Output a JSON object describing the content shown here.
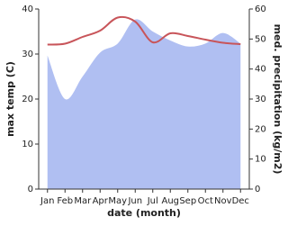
{
  "chart_data": {
    "type": "line-area",
    "x_label": "date (month)",
    "y_label": "max temp (C)",
    "y2_label": "med. precipitation (kg/m2)",
    "categories": [
      "Jan",
      "Feb",
      "Mar",
      "Apr",
      "May",
      "Jun",
      "Jul",
      "Aug",
      "Sep",
      "Oct",
      "Nov",
      "Dec"
    ],
    "series": [
      {
        "name": "max temp",
        "kind": "line",
        "axis": "y",
        "color": "#c8555a",
        "values": [
          32.1,
          32.3,
          33.8,
          35.2,
          38.1,
          37.2,
          32.6,
          34.6,
          34.0,
          33.2,
          32.5,
          32.2
        ]
      },
      {
        "name": "med. precipitation",
        "kind": "area",
        "axis": "y2",
        "color": "#b0bff2",
        "values": [
          44.5,
          30,
          37.5,
          45.5,
          48.5,
          56.5,
          52.5,
          49.5,
          47.5,
          48.5,
          52,
          48.5
        ]
      }
    ],
    "ylim": [
      0,
      40
    ],
    "yticks": [
      0,
      10,
      20,
      30,
      40
    ],
    "y2lim": [
      0,
      60
    ],
    "y2ticks": [
      0,
      10,
      20,
      30,
      40,
      50,
      60
    ]
  }
}
